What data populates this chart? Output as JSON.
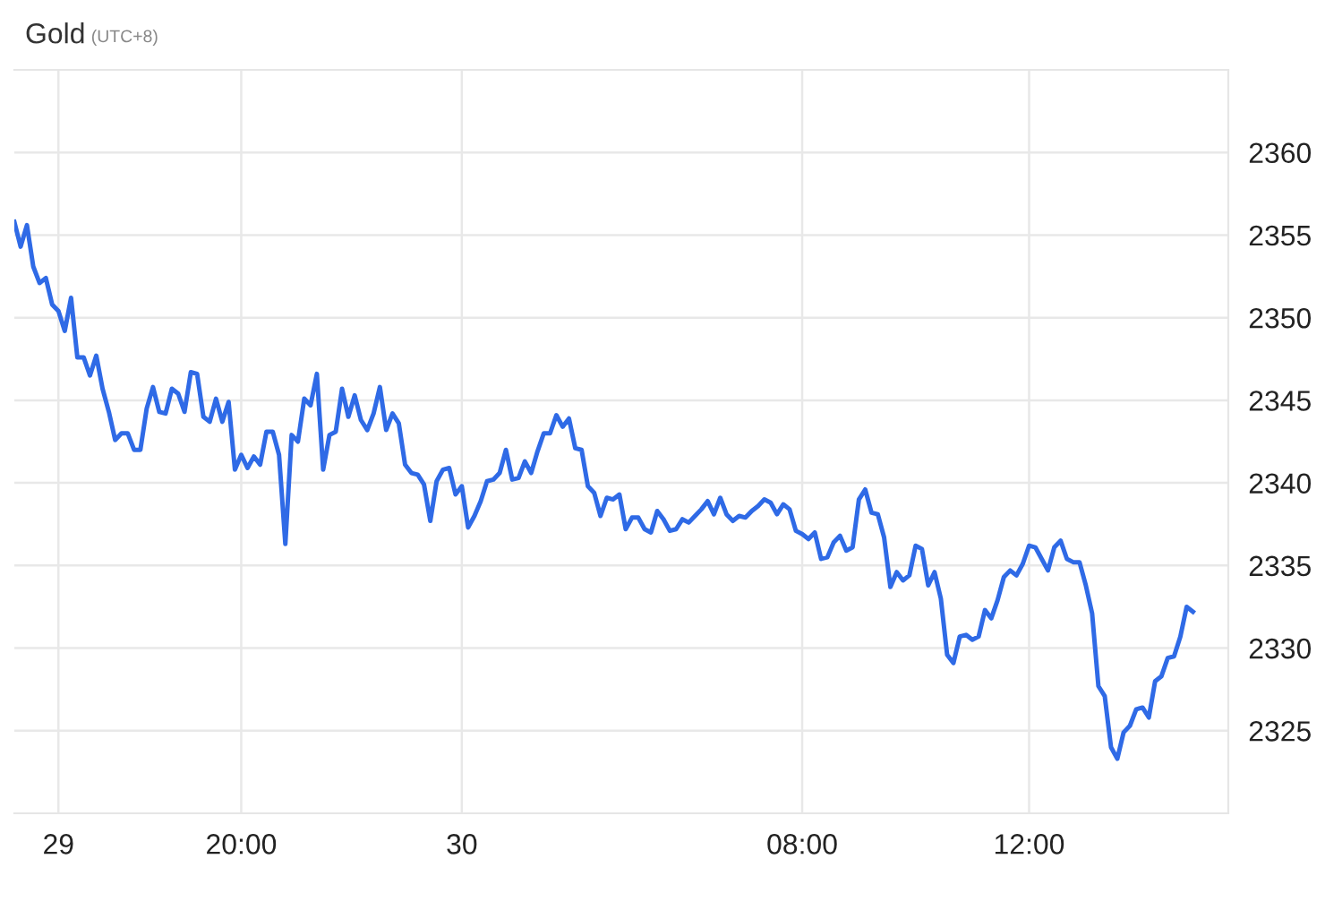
{
  "chart_data": {
    "type": "line",
    "title": "Gold",
    "subtitle": "(UTC+8)",
    "categories": [
      null,
      null,
      null,
      null,
      null,
      null,
      null,
      "29",
      null,
      null,
      null,
      null,
      null,
      null,
      null,
      null,
      null,
      null,
      null,
      null,
      null,
      null,
      null,
      null,
      null,
      null,
      null,
      null,
      null,
      null,
      null,
      null,
      null,
      null,
      null,
      null,
      "20:00",
      null,
      null,
      null,
      null,
      null,
      null,
      null,
      null,
      null,
      null,
      null,
      null,
      null,
      null,
      null,
      null,
      null,
      null,
      null,
      null,
      null,
      null,
      null,
      null,
      null,
      null,
      null,
      null,
      null,
      null,
      null,
      null,
      null,
      null,
      "30",
      null,
      null,
      null,
      null,
      null,
      null,
      null,
      null,
      null,
      null,
      null,
      null,
      null,
      null,
      null,
      null,
      null,
      null,
      null,
      null,
      null,
      null,
      null,
      null,
      null,
      null,
      null,
      null,
      null,
      null,
      null,
      null,
      null,
      null,
      null,
      null,
      null,
      null,
      null,
      null,
      null,
      null,
      null,
      null,
      null,
      null,
      null,
      null,
      null,
      null,
      null,
      null,
      null,
      "08:00",
      null,
      null,
      null,
      null,
      null,
      null,
      null,
      null,
      null,
      null,
      null,
      null,
      null,
      null,
      null,
      null,
      null,
      null,
      null,
      null,
      null,
      null,
      null,
      null,
      null,
      null,
      null,
      null,
      null,
      null,
      null,
      null,
      null,
      null,
      null,
      "12:00",
      null,
      null,
      null,
      null,
      null,
      null,
      null,
      null,
      null,
      null,
      null,
      null,
      null,
      null,
      null,
      null,
      null,
      null,
      null,
      null,
      null,
      null,
      null,
      null,
      null,
      null
    ],
    "series": [
      {
        "color": "#2f6ae6",
        "values": [
          2355.8,
          2354.3,
          2355.6,
          2353.1,
          2352.1,
          2352.4,
          2350.8,
          2350.4,
          2349.2,
          2351.2,
          2347.6,
          2347.6,
          2346.5,
          2347.7,
          2345.7,
          2344.3,
          2342.6,
          2343.0,
          2343.0,
          2342.0,
          2342.0,
          2344.5,
          2345.8,
          2344.3,
          2344.2,
          2345.7,
          2345.4,
          2344.3,
          2346.7,
          2346.6,
          2344.0,
          2343.7,
          2345.1,
          2343.7,
          2344.9,
          2340.8,
          2341.7,
          2340.9,
          2341.6,
          2341.1,
          2343.1,
          2343.1,
          2341.7,
          2336.3,
          2342.9,
          2342.5,
          2345.1,
          2344.7,
          2346.6,
          2340.8,
          2342.9,
          2343.1,
          2345.7,
          2344.0,
          2345.3,
          2343.8,
          2343.2,
          2344.2,
          2345.8,
          2343.2,
          2344.2,
          2343.6,
          2341.1,
          2340.6,
          2340.5,
          2339.9,
          2337.7,
          2340.1,
          2340.8,
          2340.9,
          2339.3,
          2339.8,
          2337.3,
          2338.0,
          2338.9,
          2340.1,
          2340.2,
          2340.6,
          2342.0,
          2340.2,
          2340.3,
          2341.3,
          2340.6,
          2341.9,
          2343.0,
          2343.0,
          2344.1,
          2343.4,
          2343.9,
          2342.1,
          2342.0,
          2339.8,
          2339.4,
          2338.0,
          2339.1,
          2339.0,
          2339.3,
          2337.2,
          2337.9,
          2337.9,
          2337.2,
          2337.0,
          2338.3,
          2337.8,
          2337.1,
          2337.2,
          2337.8,
          2337.6,
          2338.0,
          2338.4,
          2338.9,
          2338.1,
          2339.1,
          2338.1,
          2337.7,
          2338.0,
          2337.9,
          2338.3,
          2338.6,
          2339.0,
          2338.8,
          2338.1,
          2338.7,
          2338.4,
          2337.1,
          2336.9,
          2336.6,
          2337.0,
          2335.4,
          2335.5,
          2336.4,
          2336.8,
          2335.9,
          2336.1,
          2339.0,
          2339.6,
          2338.2,
          2338.1,
          2336.7,
          2333.7,
          2334.6,
          2334.1,
          2334.4,
          2336.2,
          2336.0,
          2333.8,
          2334.6,
          2333.0,
          2329.6,
          2329.1,
          2330.7,
          2330.8,
          2330.5,
          2330.7,
          2332.3,
          2331.8,
          2332.9,
          2334.3,
          2334.7,
          2334.4,
          2335.1,
          2336.2,
          2336.1,
          2335.4,
          2334.7,
          2336.1,
          2336.5,
          2335.4,
          2335.2,
          2335.2,
          2333.8,
          2332.1,
          2327.7,
          2327.1,
          2324.0,
          2323.3,
          2324.9,
          2325.3,
          2326.3,
          2326.4,
          2325.8,
          2328.0,
          2328.3,
          2329.4,
          2329.5,
          2330.7,
          2332.5,
          2332.2
        ]
      }
    ],
    "ylim": [
      2320,
      2365
    ],
    "yticks": [
      2325,
      2330,
      2335,
      2340,
      2345,
      2350,
      2355,
      2360
    ],
    "grid": true,
    "marker": "none",
    "line_style": "solid"
  }
}
